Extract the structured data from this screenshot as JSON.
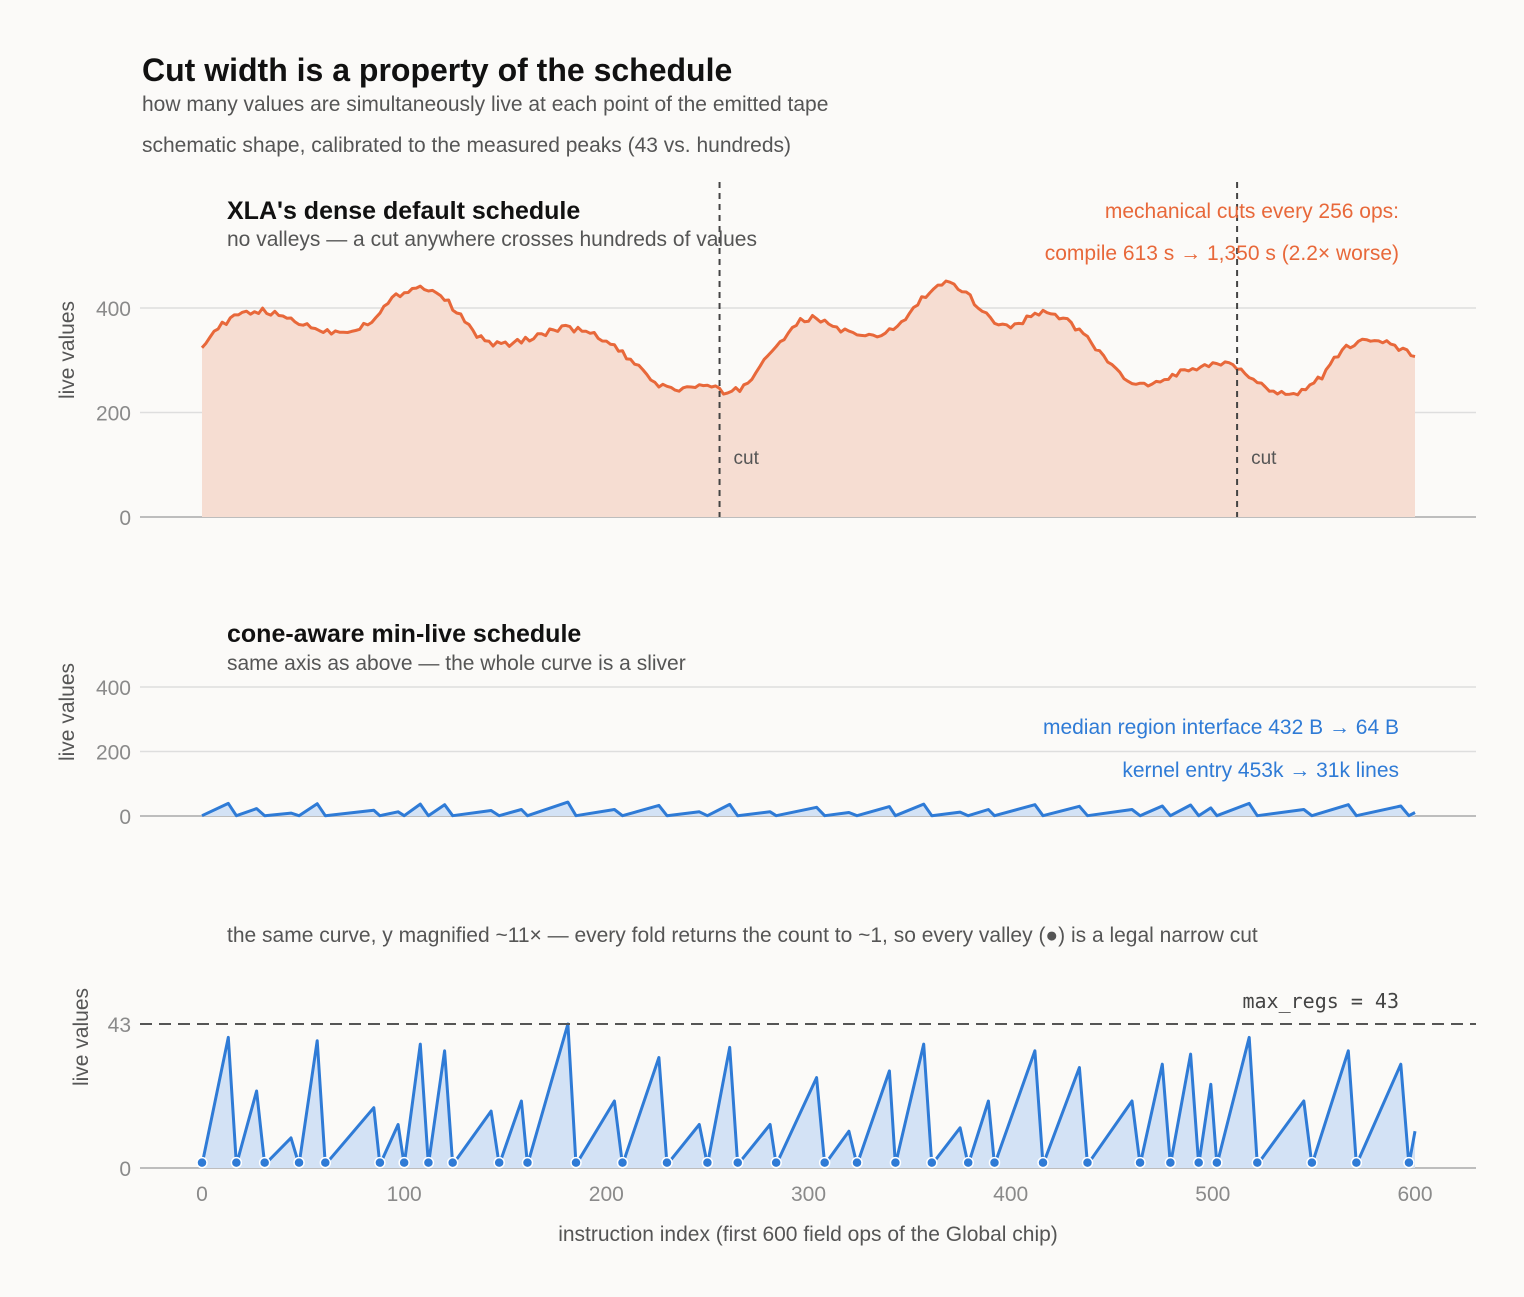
{
  "title": "Cut width is a property of the schedule",
  "subtitle_1": "how many values are simultaneously live at each point of the emitted tape",
  "subtitle_2": "schematic shape, calibrated to the measured peaks (43 vs. hundreds)",
  "panel_top": {
    "title": "XLA's dense default schedule",
    "subtitle": "no valleys — a cut anywhere crosses hundreds of values",
    "note_1": "mechanical cuts every 256 ops:",
    "note_2": "compile 613 s  →  1,350 s   (2.2× worse)",
    "cut_label": "cut"
  },
  "panel_mid": {
    "title": "cone-aware min-live schedule",
    "subtitle": "same axis as above — the whole curve is a sliver",
    "note_1": "median region interface  432 B  →  64 B",
    "note_2": "kernel entry  453k  →  31k lines"
  },
  "panel_bot": {
    "caption": "the same curve, y magnified ~11× — every fold returns the count to ~1, so every valley (●) is a legal narrow cut",
    "threshold_label": "max_regs = 43"
  },
  "colors": {
    "dense": "#e8683a",
    "dense_fill": "#f6ddd2",
    "minlive": "#2f7bd6",
    "minlive_fill": "#d3e2f5"
  },
  "chart_data": [
    {
      "type": "area",
      "name": "dense",
      "ylabel": "live values",
      "ylim": [
        0,
        460
      ],
      "yticks": [
        0,
        200,
        400
      ],
      "grid": true,
      "xlim": [
        0,
        600
      ],
      "cuts_at": [
        256,
        512
      ],
      "points": [
        [
          0,
          330
        ],
        [
          8,
          362
        ],
        [
          15,
          380
        ],
        [
          22,
          392
        ],
        [
          30,
          394
        ],
        [
          38,
          386
        ],
        [
          46,
          376
        ],
        [
          54,
          363
        ],
        [
          62,
          355
        ],
        [
          70,
          355
        ],
        [
          78,
          363
        ],
        [
          86,
          382
        ],
        [
          94,
          417
        ],
        [
          100,
          432
        ],
        [
          106,
          440
        ],
        [
          112,
          438
        ],
        [
          118,
          425
        ],
        [
          124,
          402
        ],
        [
          130,
          374
        ],
        [
          136,
          348
        ],
        [
          142,
          333
        ],
        [
          150,
          330
        ],
        [
          158,
          336
        ],
        [
          166,
          348
        ],
        [
          174,
          358
        ],
        [
          182,
          362
        ],
        [
          190,
          354
        ],
        [
          198,
          341
        ],
        [
          206,
          320
        ],
        [
          212,
          298
        ],
        [
          218,
          278
        ],
        [
          224,
          258
        ],
        [
          230,
          246
        ],
        [
          236,
          244
        ],
        [
          242,
          249
        ],
        [
          248,
          251
        ],
        [
          254,
          245
        ],
        [
          260,
          236
        ],
        [
          266,
          246
        ],
        [
          272,
          263
        ],
        [
          278,
          302
        ],
        [
          284,
          328
        ],
        [
          290,
          350
        ],
        [
          296,
          374
        ],
        [
          302,
          381
        ],
        [
          308,
          374
        ],
        [
          314,
          362
        ],
        [
          320,
          352
        ],
        [
          326,
          345
        ],
        [
          332,
          345
        ],
        [
          338,
          351
        ],
        [
          344,
          366
        ],
        [
          350,
          388
        ],
        [
          356,
          417
        ],
        [
          362,
          437
        ],
        [
          368,
          447
        ],
        [
          374,
          438
        ],
        [
          380,
          420
        ],
        [
          386,
          396
        ],
        [
          392,
          374
        ],
        [
          398,
          364
        ],
        [
          404,
          371
        ],
        [
          410,
          385
        ],
        [
          416,
          391
        ],
        [
          422,
          390
        ],
        [
          428,
          374
        ],
        [
          434,
          357
        ],
        [
          440,
          336
        ],
        [
          446,
          305
        ],
        [
          452,
          282
        ],
        [
          458,
          261
        ],
        [
          464,
          251
        ],
        [
          470,
          252
        ],
        [
          476,
          262
        ],
        [
          482,
          275
        ],
        [
          488,
          280
        ],
        [
          494,
          282
        ],
        [
          500,
          294
        ],
        [
          506,
          293
        ],
        [
          512,
          283
        ],
        [
          518,
          270
        ],
        [
          524,
          253
        ],
        [
          530,
          243
        ],
        [
          536,
          236
        ],
        [
          542,
          239
        ],
        [
          548,
          249
        ],
        [
          554,
          270
        ],
        [
          560,
          300
        ],
        [
          566,
          323
        ],
        [
          572,
          338
        ],
        [
          578,
          341
        ],
        [
          584,
          336
        ],
        [
          590,
          325
        ],
        [
          596,
          316
        ],
        [
          600,
          305
        ]
      ]
    },
    {
      "type": "area",
      "name": "min-live",
      "ylabel": "live values",
      "ylim": [
        0,
        460
      ],
      "yticks": [
        0,
        200,
        400
      ],
      "grid": true,
      "xlim": [
        0,
        600
      ],
      "points": [
        [
          0,
          1
        ],
        [
          13,
          39
        ],
        [
          17,
          1
        ],
        [
          27,
          23
        ],
        [
          31,
          1
        ],
        [
          44,
          9
        ],
        [
          48,
          1
        ],
        [
          57,
          38
        ],
        [
          61,
          1
        ],
        [
          85,
          18
        ],
        [
          88,
          1
        ],
        [
          97,
          13
        ],
        [
          100,
          1
        ],
        [
          108,
          37
        ],
        [
          112,
          1
        ],
        [
          120,
          35
        ],
        [
          124,
          1
        ],
        [
          143,
          17
        ],
        [
          147,
          1
        ],
        [
          158,
          20
        ],
        [
          161,
          1
        ],
        [
          181,
          43
        ],
        [
          185,
          1
        ],
        [
          204,
          20
        ],
        [
          208,
          1
        ],
        [
          226,
          33
        ],
        [
          230,
          1
        ],
        [
          246,
          13
        ],
        [
          250,
          1
        ],
        [
          261,
          36
        ],
        [
          265,
          1
        ],
        [
          281,
          13
        ],
        [
          284,
          1
        ],
        [
          304,
          27
        ],
        [
          308,
          1
        ],
        [
          320,
          11
        ],
        [
          324,
          1
        ],
        [
          340,
          29
        ],
        [
          343,
          1
        ],
        [
          357,
          37
        ],
        [
          361,
          1
        ],
        [
          375,
          12
        ],
        [
          379,
          1
        ],
        [
          389,
          20
        ],
        [
          392,
          1
        ],
        [
          412,
          35
        ],
        [
          416,
          1
        ],
        [
          434,
          30
        ],
        [
          438,
          1
        ],
        [
          460,
          20
        ],
        [
          464,
          1
        ],
        [
          475,
          31
        ],
        [
          479,
          1
        ],
        [
          489,
          34
        ],
        [
          493,
          1
        ],
        [
          499,
          25
        ],
        [
          502,
          1
        ],
        [
          518,
          39
        ],
        [
          522,
          1
        ],
        [
          545,
          20
        ],
        [
          549,
          1
        ],
        [
          567,
          35
        ],
        [
          571,
          1
        ],
        [
          593,
          31
        ],
        [
          597,
          1
        ],
        [
          600,
          11
        ]
      ]
    },
    {
      "type": "area",
      "name": "min-live (magnified)",
      "ylabel": "live values",
      "xlabel": "instruction index (first 600 field ops of the Global chip)",
      "ylim": [
        0,
        43
      ],
      "yticks": [
        0,
        43
      ],
      "xticks": [
        0,
        100,
        200,
        300,
        400,
        500,
        600
      ],
      "threshold": 43,
      "valley_markers": true,
      "grid": false
    }
  ]
}
